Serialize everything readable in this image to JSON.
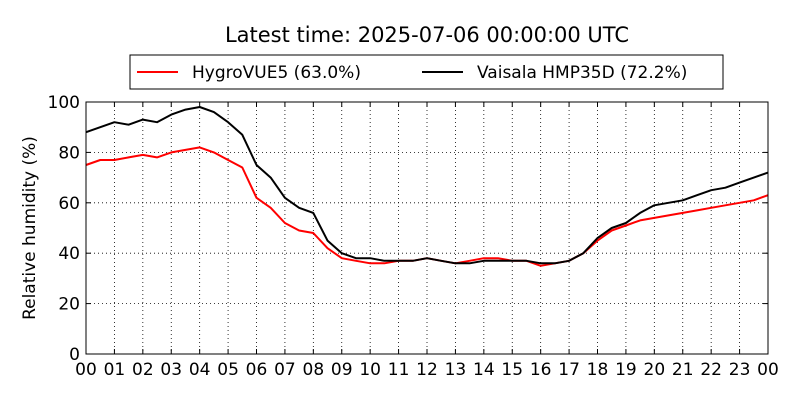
{
  "chart_data": {
    "type": "line",
    "title": "Latest time: 2025-07-06 00:00:00 UTC",
    "xlabel": "",
    "ylabel": "Relative humidity (%)",
    "xlim": [
      0,
      24
    ],
    "ylim": [
      0,
      100
    ],
    "grid": true,
    "legend_position": "top-center",
    "x_ticks": [
      "00",
      "01",
      "02",
      "03",
      "04",
      "05",
      "06",
      "07",
      "08",
      "09",
      "10",
      "11",
      "12",
      "13",
      "14",
      "15",
      "16",
      "17",
      "18",
      "19",
      "20",
      "21",
      "22",
      "23",
      "00"
    ],
    "y_ticks": [
      "0",
      "20",
      "40",
      "60",
      "80",
      "100"
    ],
    "series": [
      {
        "name": "HygroVUE5 (63.0%)",
        "color": "#ff0000",
        "x": [
          0,
          0.5,
          1,
          1.5,
          2,
          2.5,
          3,
          3.5,
          4,
          4.5,
          5,
          5.5,
          6,
          6.5,
          7,
          7.5,
          8,
          8.5,
          9,
          9.5,
          10,
          10.5,
          11,
          11.5,
          12,
          12.5,
          13,
          13.5,
          14,
          14.5,
          15,
          15.5,
          16,
          16.5,
          17,
          17.5,
          18,
          18.5,
          19,
          19.5,
          20,
          20.5,
          21,
          21.5,
          22,
          22.5,
          23,
          23.5,
          24
        ],
        "y": [
          75,
          77,
          77,
          78,
          79,
          78,
          80,
          81,
          82,
          80,
          77,
          74,
          62,
          58,
          52,
          49,
          48,
          42,
          38,
          37,
          36,
          36,
          37,
          37,
          38,
          37,
          36,
          37,
          38,
          38,
          37,
          37,
          35,
          36,
          37,
          40,
          45,
          49,
          51,
          53,
          54,
          55,
          56,
          57,
          58,
          59,
          60,
          61,
          63
        ]
      },
      {
        "name": "Vaisala HMP35D (72.2%)",
        "color": "#000000",
        "x": [
          0,
          0.5,
          1,
          1.5,
          2,
          2.5,
          3,
          3.5,
          4,
          4.5,
          5,
          5.5,
          6,
          6.5,
          7,
          7.5,
          8,
          8.5,
          9,
          9.5,
          10,
          10.5,
          11,
          11.5,
          12,
          12.5,
          13,
          13.5,
          14,
          14.5,
          15,
          15.5,
          16,
          16.5,
          17,
          17.5,
          18,
          18.5,
          19,
          19.5,
          20,
          20.5,
          21,
          21.5,
          22,
          22.5,
          23,
          23.5,
          24
        ],
        "y": [
          88,
          90,
          92,
          91,
          93,
          92,
          95,
          97,
          98,
          96,
          92,
          87,
          75,
          70,
          62,
          58,
          56,
          45,
          40,
          38,
          38,
          37,
          37,
          37,
          38,
          37,
          36,
          36,
          37,
          37,
          37,
          37,
          36,
          36,
          37,
          40,
          46,
          50,
          52,
          56,
          59,
          60,
          61,
          63,
          65,
          66,
          68,
          70,
          72
        ]
      }
    ]
  }
}
